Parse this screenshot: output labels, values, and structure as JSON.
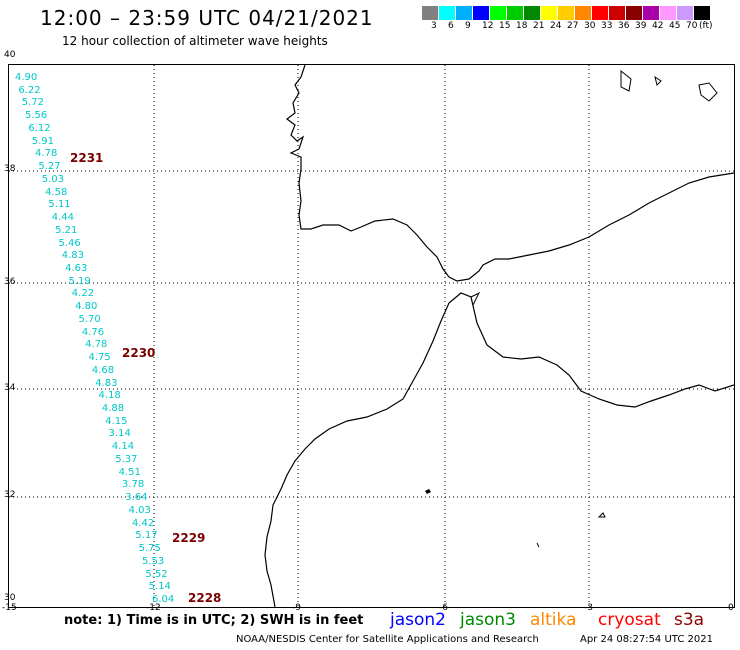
{
  "title": "12:00 – 23:59 UTC 04/21/2021",
  "subtitle": "12 hour collection of altimeter wave heights",
  "colorbar": {
    "colors": [
      "#808080",
      "#00ffff",
      "#00b0ff",
      "#0000ff",
      "#00ff00",
      "#00cc00",
      "#008800",
      "#ffff00",
      "#ffcc00",
      "#ff8800",
      "#ff0000",
      "#cc0000",
      "#880000",
      "#aa00aa",
      "#ff99ff",
      "#cc99ff",
      "#000000"
    ],
    "labels": [
      "3",
      "6",
      "9",
      "12",
      "15",
      "18",
      "21",
      "24",
      "27",
      "30",
      "33",
      "36",
      "39",
      "42",
      "45",
      "70",
      "(ft)"
    ]
  },
  "lat_labels": [
    "40",
    "38",
    "36",
    "34",
    "32",
    "30"
  ],
  "lon_labels": [
    "-15",
    "-12",
    "-9",
    "-6",
    "-3",
    "0"
  ],
  "wave_heights": [
    "4.90",
    "6.22",
    "5.72",
    "5.56",
    "6.12",
    "5.91",
    "4.78",
    "5.27",
    "5.03",
    "4.58",
    "5.11",
    "4.44",
    "5.21",
    "5.46",
    "4.83",
    "4.63",
    "5.19",
    "4.22",
    "4.80",
    "5.70",
    "4.76",
    "4.78",
    "4.75",
    "4.68",
    "4.83",
    "4.18",
    "4.88",
    "4.15",
    "3.14",
    "4.14",
    "5.37",
    "4.51",
    "3.78",
    "3.64",
    "4.03",
    "4.42",
    "5.17",
    "5.75",
    "5.53",
    "5.52",
    "5.14",
    "6.04"
  ],
  "time_labels": [
    "2231",
    "2230",
    "2229",
    "2228"
  ],
  "note": "note: 1) Time is in UTC; 2) SWH is in feet",
  "legend": [
    {
      "name": "jason2",
      "color": "#0000ff"
    },
    {
      "name": "jason3",
      "color": "#008800"
    },
    {
      "name": "altika",
      "color": "#ff8800"
    },
    {
      "name": "cryosat",
      "color": "#ff0000"
    },
    {
      "name": "s3a",
      "color": "#880000"
    }
  ],
  "footer": "NOAA/NESDIS Center for Satellite Applications and Research",
  "footer_time": "Apr 24 08:27:54 UTC 2021"
}
